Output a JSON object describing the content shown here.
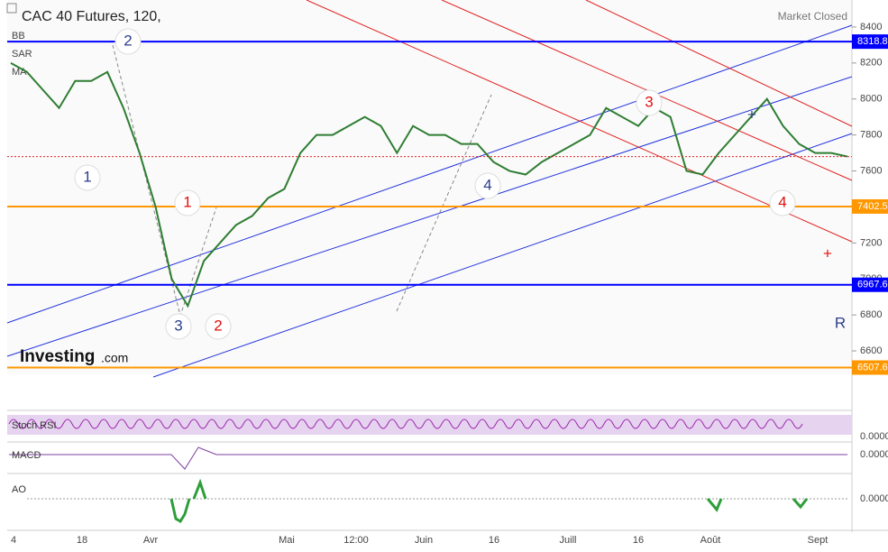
{
  "header": {
    "title": "CAC 40 Futures, 120,",
    "status": "Market Closed",
    "indicators": [
      "BB",
      "SAR",
      "MA"
    ]
  },
  "brand": {
    "name": "Investing",
    "suffix": ".com"
  },
  "chart": {
    "ylim": [
      6470,
      8550
    ],
    "yticks": [
      8400,
      8200,
      8000,
      7800,
      7600,
      7400,
      7200,
      7000,
      6800,
      6600
    ],
    "levels": [
      {
        "value": 8318.8,
        "color": "#0000ff"
      },
      {
        "value": 7402.5,
        "color": "#ff9800"
      },
      {
        "value": 6967.6,
        "color": "#0000ff"
      },
      {
        "value": 6507.6,
        "color": "#ff9800"
      }
    ],
    "dates": [
      "4",
      "18",
      "Avr",
      "Mai",
      "12:00",
      "Juin",
      "16",
      "Juill",
      "16",
      "Août",
      "Sept"
    ],
    "price": {
      "color": "#2e7d32",
      "values": [
        8200,
        8150,
        8050,
        7950,
        8100,
        8100,
        8150,
        7950,
        7700,
        7400,
        7000,
        6850,
        7100,
        7200,
        7300,
        7350,
        7450,
        7500,
        7700,
        7800,
        7800,
        7850,
        7900,
        7850,
        7700,
        7850,
        7800,
        7800,
        7750,
        7750,
        7650,
        7600,
        7580,
        7650,
        7700,
        7750,
        7800,
        7950,
        7900,
        7850,
        7950,
        7900,
        7600,
        7580,
        7700,
        7800,
        7900,
        8000,
        7850,
        7750,
        7700,
        7700,
        7680
      ]
    },
    "waves": [
      {
        "text": "2",
        "color": "#2c3e8c"
      },
      {
        "text": "1",
        "color": "#2c3e8c"
      },
      {
        "text": "3",
        "color": "#2c3e8c"
      },
      {
        "text": "1",
        "color": "#e01010"
      },
      {
        "text": "2",
        "color": "#e01010"
      },
      {
        "text": "4",
        "color": "#2c3e8c"
      },
      {
        "text": "3",
        "color": "#e01010"
      },
      {
        "text": "4",
        "color": "#e01010"
      },
      {
        "text": "+",
        "color": "#2c3e8c"
      },
      {
        "text": "+",
        "color": "#e01010"
      },
      {
        "text": "R",
        "color": "#2c3e8c"
      }
    ]
  },
  "panels": [
    {
      "name": "Stoch RSI",
      "zero": "0.0000"
    },
    {
      "name": "MACD",
      "zero": "0.0000"
    },
    {
      "name": "AO",
      "zero": "0.0000"
    }
  ]
}
